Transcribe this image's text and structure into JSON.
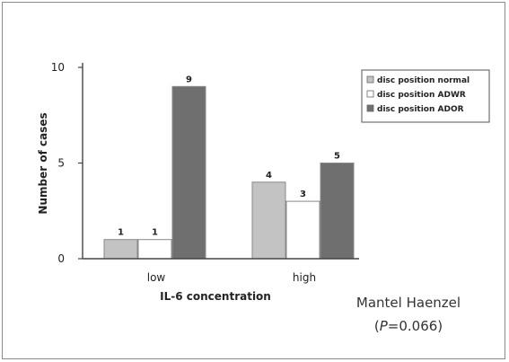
{
  "chart_data": {
    "type": "bar",
    "categories": [
      "low",
      "high"
    ],
    "series": [
      {
        "name": "disc position normal",
        "values": [
          1,
          4
        ],
        "color": "#c3c3c3"
      },
      {
        "name": "disc position ADWR",
        "values": [
          1,
          3
        ],
        "color": "#ffffff"
      },
      {
        "name": "disc position ADOR",
        "values": [
          9,
          5
        ],
        "color": "#6f6f6f"
      }
    ],
    "data_labels": [
      [
        "1",
        "4"
      ],
      [
        "1",
        "3"
      ],
      [
        "9",
        "5"
      ]
    ],
    "xlabel": "IL-6 concentration",
    "ylabel": "Number of cases",
    "yticks": [
      0,
      5,
      10
    ],
    "ylim": [
      0,
      10
    ],
    "grid": false,
    "legend_position": "top-right",
    "colors": {
      "axis": "#444444",
      "text": "#222222",
      "bar_outline": "#888888"
    }
  },
  "annotation": {
    "line1": "Mantel Haenzel",
    "line2_prefix": "(",
    "line2_italic": "P",
    "line2_rest": "=0.066)"
  }
}
